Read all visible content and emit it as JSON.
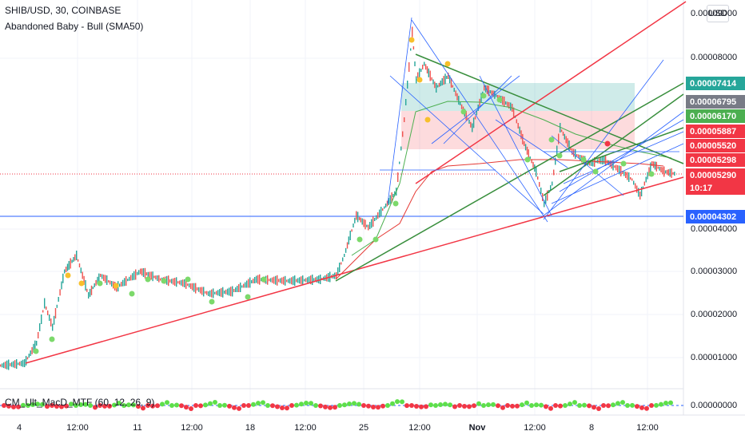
{
  "header": {
    "symbol_line": "SHIB/USD, 30, COINBASE",
    "indicator_line": "Abandoned Baby - Bull (SMA50)",
    "currency_button": "USD"
  },
  "oscillator": {
    "label": "CM_Ult_MacD_MTF (60, 12, 26, 9)"
  },
  "price_axis": {
    "labels": [
      "0.00009000",
      "0.00008000",
      "0.00004000",
      "0.00003000",
      "0.00002000",
      "0.00001000",
      "0.00000000"
    ]
  },
  "badges": [
    {
      "text": "0.00007414",
      "color": "#26a69a"
    },
    {
      "text": "0.00006795",
      "color": "#787b86"
    },
    {
      "text": "0.00006170",
      "color": "#4caf50"
    },
    {
      "text": "0.00005887",
      "color": "#f23645"
    },
    {
      "text": "0.00005520",
      "color": "#f23645"
    },
    {
      "text": "0.00005298",
      "color": "#f23645"
    },
    {
      "text": "0.00005290",
      "color": "#f23645"
    },
    {
      "text": "10:17",
      "color": "#f23645"
    },
    {
      "text": "0.00004302",
      "color": "#2962ff"
    }
  ],
  "time_axis": {
    "labels": [
      "4",
      "12:00",
      "11",
      "12:00",
      "18",
      "12:00",
      "25",
      "12:00",
      "Nov",
      "12:00",
      "8",
      "12:00"
    ]
  },
  "colors": {
    "up_candle": "#26a69a",
    "down_candle": "#ef5350",
    "trendline_red": "#f23645",
    "trendline_green": "#4caf50",
    "trendline_blue": "#2962ff",
    "horizontal_line": "#2962ff"
  }
}
